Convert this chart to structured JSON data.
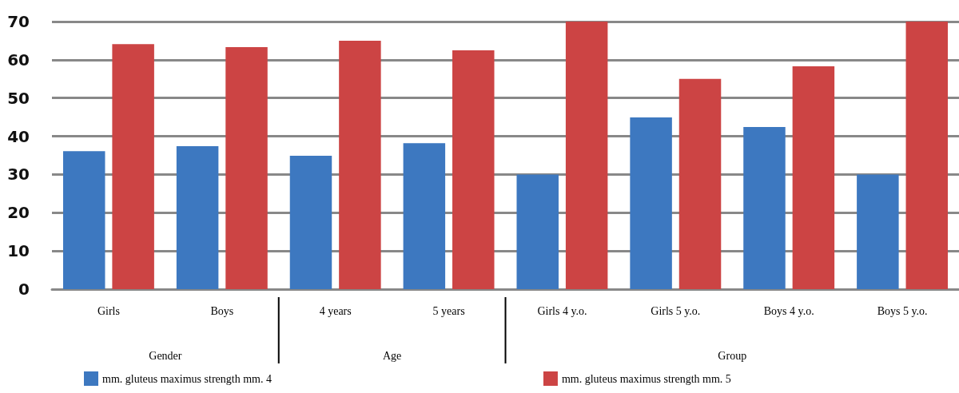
{
  "chart_data": {
    "type": "bar",
    "categories": [
      "Girls",
      "Boys",
      "4 years",
      "5 years",
      "Girls 4 y.o.",
      "Girls 5 y.o.",
      "Boys 4 y.o.",
      "Boys 5 y.o."
    ],
    "series": [
      {
        "name": "mm. gluteus maximus strength mm. 4",
        "color": "#3d78c0",
        "values": [
          36.1,
          37.4,
          34.9,
          38.2,
          30,
          44.9,
          42.4,
          30
        ]
      },
      {
        "name": "mm. gluteus maximus strength mm. 5",
        "color": "#cc4444",
        "values": [
          64.1,
          63.3,
          65,
          62.5,
          70,
          55,
          58.3,
          70
        ]
      }
    ],
    "annotations": [
      "Gender",
      "Age",
      "Group"
    ],
    "ylim": [
      0,
      70
    ],
    "yticks": [
      0,
      10,
      20,
      30,
      40,
      50,
      60,
      70
    ],
    "grid": "y",
    "legend": "bottom left"
  }
}
